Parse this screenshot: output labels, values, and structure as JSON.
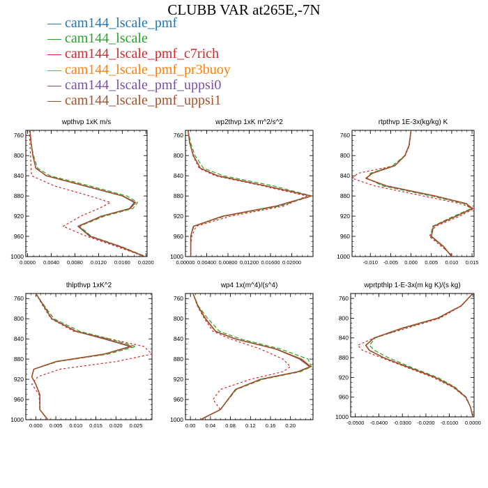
{
  "figure": {
    "title": "CLUBB VAR at265E,-7N",
    "legend": [
      {
        "name": "cam144_lscale_pmf",
        "color": "#1f77b4",
        "dash": ""
      },
      {
        "name": "cam144_lscale",
        "color": "#2ca02c",
        "dash": "6,3"
      },
      {
        "name": "cam144_lscale_pmf_c7rich",
        "color": "#d62728",
        "dash": "3,3"
      },
      {
        "name": "cam144_lscale_pmf_pr3buoy",
        "color": "#ff7f0e",
        "dash": ""
      },
      {
        "name": "cam144_lscale_pmf_uppsi0",
        "color": "#7b4fa6",
        "dash": ""
      },
      {
        "name": "cam144_lscale_pmf_uppsi1",
        "color": "#a0522d",
        "dash": ""
      }
    ]
  },
  "chart_data": [
    {
      "type": "line",
      "title": "wpthvp   1xK m/s",
      "xlim": [
        -0.0003,
        0.0202
      ],
      "ylim": [
        1000,
        750
      ],
      "xticks": [
        0.0,
        0.004,
        0.008,
        0.012,
        0.016,
        0.02
      ],
      "xtick_labels": [
        "0.0000",
        "0.0040",
        "0.0080",
        "0.0120",
        "0.0160",
        "0.0200"
      ],
      "yticks": [
        760,
        800,
        840,
        880,
        920,
        960,
        1000
      ],
      "y": [
        750,
        775,
        800,
        825,
        840,
        860,
        880,
        893,
        905,
        920,
        940,
        960,
        980,
        1000
      ],
      "series": [
        {
          "values": [
            0.0004,
            0.0006,
            0.0009,
            0.0014,
            0.0032,
            0.0095,
            0.016,
            0.018,
            0.0172,
            0.0125,
            0.0085,
            0.0105,
            0.0155,
            0.0198
          ]
        },
        {
          "values": [
            0.0004,
            0.0006,
            0.001,
            0.0017,
            0.0038,
            0.0105,
            0.0168,
            0.0186,
            0.0178,
            0.013,
            0.0088,
            0.0108,
            0.0158,
            0.02
          ]
        },
        {
          "values": [
            0.0003,
            0.0004,
            0.0005,
            0.0006,
            0.0007,
            0.0045,
            0.0105,
            0.014,
            0.012,
            0.009,
            0.006,
            0.01,
            0.015,
            0.0198
          ]
        },
        {
          "values": [
            0.0004,
            0.0006,
            0.0009,
            0.0014,
            0.0032,
            0.0098,
            0.0162,
            0.0183,
            0.0174,
            0.0126,
            0.0086,
            0.0106,
            0.0156,
            0.0198
          ]
        },
        {
          "values": [
            0.0004,
            0.0006,
            0.0009,
            0.0014,
            0.0032,
            0.0096,
            0.016,
            0.0181,
            0.0172,
            0.0125,
            0.0085,
            0.0105,
            0.0155,
            0.0198
          ]
        },
        {
          "values": [
            0.0004,
            0.0006,
            0.0009,
            0.0014,
            0.0032,
            0.0097,
            0.0161,
            0.0182,
            0.0173,
            0.0125,
            0.0086,
            0.0106,
            0.0156,
            0.0198
          ]
        }
      ]
    },
    {
      "type": "line",
      "title": "wp2thvp   1xK m^2/s^2",
      "xlim": [
        0.0,
        0.024
      ],
      "ylim": [
        1000,
        750
      ],
      "xticks": [
        0.0,
        0.004,
        0.008,
        0.012,
        0.016,
        0.02
      ],
      "xtick_labels": [
        "0.00000",
        "0.00400",
        "0.00800",
        "0.01200",
        "0.01600",
        "0.02000"
      ],
      "yticks": [
        760,
        800,
        840,
        880,
        920,
        960,
        1000
      ],
      "y": [
        750,
        775,
        800,
        825,
        840,
        860,
        880,
        900,
        920,
        940,
        960,
        980,
        1000
      ],
      "series": [
        {
          "values": [
            0.0005,
            0.0008,
            0.0015,
            0.0028,
            0.006,
            0.015,
            0.0236,
            0.017,
            0.007,
            0.0015,
            0.001,
            0.001,
            0.001
          ]
        },
        {
          "values": [
            0.0005,
            0.001,
            0.0018,
            0.0034,
            0.0072,
            0.0165,
            0.0238,
            0.0178,
            0.0074,
            0.0016,
            0.001,
            0.001,
            0.001
          ]
        },
        {
          "values": [
            0.0005,
            0.0008,
            0.0014,
            0.0026,
            0.0056,
            0.0145,
            0.0228,
            0.0185,
            0.0085,
            0.002,
            0.0012,
            0.001,
            0.001
          ]
        },
        {
          "values": [
            0.0005,
            0.0008,
            0.0015,
            0.0028,
            0.0062,
            0.0152,
            0.0237,
            0.0172,
            0.0071,
            0.0015,
            0.001,
            0.001,
            0.001
          ]
        },
        {
          "values": [
            0.0005,
            0.0008,
            0.0015,
            0.0028,
            0.006,
            0.0151,
            0.0236,
            0.0171,
            0.007,
            0.0015,
            0.001,
            0.001,
            0.001
          ]
        },
        {
          "values": [
            0.0005,
            0.0008,
            0.0015,
            0.0028,
            0.0061,
            0.0151,
            0.0237,
            0.0171,
            0.007,
            0.0015,
            0.001,
            0.001,
            0.001
          ]
        }
      ]
    },
    {
      "type": "line",
      "title": "rtpthvp   1E-3x(kg/kg) K",
      "xlim": [
        -0.0145,
        0.0155
      ],
      "ylim": [
        1000,
        750
      ],
      "xticks": [
        -0.01,
        -0.005,
        0.0,
        0.005,
        0.01,
        0.015
      ],
      "xtick_labels": [
        "-0.010",
        "-0.005",
        "0.000",
        "0.005",
        "0.010",
        "0.015"
      ],
      "yticks": [
        760,
        800,
        840,
        880,
        920,
        960,
        1000
      ],
      "y": [
        750,
        780,
        800,
        820,
        835,
        845,
        860,
        880,
        895,
        905,
        920,
        940,
        960,
        980,
        1000
      ],
      "series": [
        {
          "values": [
            0.0,
            -0.0005,
            -0.0015,
            -0.004,
            -0.0095,
            -0.011,
            -0.006,
            0.006,
            0.0135,
            0.015,
            0.011,
            0.0055,
            0.005,
            0.008,
            0.01
          ]
        },
        {
          "values": [
            0.0,
            -0.0005,
            -0.0016,
            -0.0045,
            -0.01,
            -0.0108,
            -0.007,
            0.005,
            0.013,
            0.0148,
            0.0105,
            0.0053,
            0.0048,
            0.0078,
            0.01
          ]
        },
        {
          "values": [
            0.0,
            -0.0004,
            -0.0014,
            -0.004,
            -0.013,
            -0.0145,
            -0.009,
            0.003,
            0.012,
            0.0155,
            0.012,
            0.006,
            0.0045,
            0.0075,
            0.0105
          ]
        },
        {
          "values": [
            0.0,
            -0.0005,
            -0.0015,
            -0.004,
            -0.0096,
            -0.0111,
            -0.0062,
            0.0058,
            0.0136,
            0.0152,
            0.0112,
            0.0055,
            0.005,
            0.008,
            0.01
          ]
        },
        {
          "values": [
            0.0,
            -0.0005,
            -0.0015,
            -0.004,
            -0.0095,
            -0.011,
            -0.0061,
            0.0059,
            0.0135,
            0.0151,
            0.0111,
            0.0055,
            0.005,
            0.008,
            0.01
          ]
        },
        {
          "values": [
            0.0,
            -0.0005,
            -0.0015,
            -0.004,
            -0.0095,
            -0.0111,
            -0.0061,
            0.0059,
            0.0136,
            0.0151,
            0.0111,
            0.0055,
            0.005,
            0.008,
            0.01
          ]
        }
      ]
    },
    {
      "type": "line",
      "title": "thlpthvp   1xK^2",
      "xlim": [
        -0.0025,
        0.029
      ],
      "ylim": [
        1000,
        750
      ],
      "xticks": [
        0.0,
        0.005,
        0.01,
        0.015,
        0.02,
        0.025
      ],
      "xtick_labels": [
        "0.000",
        "0.005",
        "0.010",
        "0.015",
        "0.020",
        "0.025"
      ],
      "yticks": [
        760,
        800,
        840,
        880,
        920,
        960,
        1000
      ],
      "y": [
        750,
        775,
        800,
        825,
        840,
        855,
        870,
        885,
        900,
        915,
        930,
        950,
        980,
        1000
      ],
      "series": [
        {
          "values": [
            0.0,
            0.002,
            0.004,
            0.01,
            0.017,
            0.0235,
            0.017,
            0.005,
            -0.0005,
            -0.001,
            0.0,
            0.001,
            0.001,
            0.003
          ]
        },
        {
          "values": [
            0.0,
            0.0022,
            0.0045,
            0.011,
            0.0185,
            0.025,
            0.018,
            0.0055,
            -0.0005,
            -0.001,
            0.0,
            0.001,
            0.001,
            0.003
          ]
        },
        {
          "values": [
            0.0,
            0.0018,
            0.0038,
            0.0095,
            0.0185,
            0.027,
            0.029,
            0.02,
            0.006,
            0.0005,
            -0.001,
            0.0008,
            0.001,
            0.003
          ]
        },
        {
          "values": [
            0.0,
            0.002,
            0.004,
            0.0102,
            0.0175,
            0.024,
            0.0172,
            0.0051,
            -0.0005,
            -0.001,
            0.0,
            0.001,
            0.001,
            0.003
          ]
        },
        {
          "values": [
            0.0,
            0.002,
            0.004,
            0.01,
            0.0172,
            0.0236,
            0.017,
            0.005,
            -0.0005,
            -0.001,
            0.0,
            0.001,
            0.001,
            0.003
          ]
        },
        {
          "values": [
            0.0,
            0.002,
            0.004,
            0.0101,
            0.0174,
            0.0238,
            0.0171,
            0.005,
            -0.0005,
            -0.001,
            0.0,
            0.001,
            0.001,
            0.003
          ]
        }
      ]
    },
    {
      "type": "line",
      "title": "wp4   1x(m^4)/(s^4)",
      "xlim": [
        -0.01,
        0.245
      ],
      "ylim": [
        1000,
        750
      ],
      "xticks": [
        0.0,
        0.04,
        0.08,
        0.12,
        0.16,
        0.2
      ],
      "xtick_labels": [
        "0.00",
        "0.04",
        "0.08",
        "0.12",
        "0.16",
        "0.20"
      ],
      "yticks": [
        760,
        800,
        840,
        880,
        920,
        960,
        1000
      ],
      "y": [
        750,
        775,
        800,
        825,
        840,
        860,
        880,
        895,
        905,
        920,
        940,
        960,
        980,
        1000
      ],
      "series": [
        {
          "values": [
            0.005,
            0.015,
            0.03,
            0.05,
            0.09,
            0.17,
            0.22,
            0.24,
            0.215,
            0.14,
            0.09,
            0.075,
            0.06,
            0.02
          ]
        },
        {
          "values": [
            0.005,
            0.016,
            0.035,
            0.058,
            0.1,
            0.18,
            0.235,
            0.242,
            0.22,
            0.145,
            0.092,
            0.076,
            0.06,
            0.02
          ]
        },
        {
          "values": [
            0.005,
            0.014,
            0.028,
            0.045,
            0.08,
            0.14,
            0.185,
            0.2,
            0.185,
            0.12,
            0.06,
            0.045,
            0.06,
            0.02
          ]
        },
        {
          "values": [
            0.005,
            0.015,
            0.031,
            0.051,
            0.091,
            0.172,
            0.223,
            0.241,
            0.216,
            0.141,
            0.09,
            0.075,
            0.06,
            0.02
          ]
        },
        {
          "values": [
            0.005,
            0.015,
            0.03,
            0.05,
            0.09,
            0.17,
            0.218,
            0.238,
            0.214,
            0.14,
            0.09,
            0.075,
            0.06,
            0.02
          ]
        },
        {
          "values": [
            0.005,
            0.015,
            0.03,
            0.05,
            0.09,
            0.171,
            0.221,
            0.24,
            0.215,
            0.14,
            0.09,
            0.075,
            0.06,
            0.02
          ]
        }
      ]
    },
    {
      "type": "line",
      "title": "wprtpthlp   1-E-3x(m kg K)/(s kg)",
      "xlim": [
        -0.052,
        0.0005
      ],
      "ylim": [
        1000,
        750
      ],
      "xticks": [
        -0.05,
        -0.04,
        -0.03,
        -0.02,
        -0.01,
        0.0
      ],
      "xtick_labels": [
        "-0.0500",
        "-0.0400",
        "-0.0300",
        "-0.0200",
        "-0.0100",
        "0.0000"
      ],
      "yticks": [
        760,
        800,
        840,
        880,
        920,
        960,
        1000
      ],
      "y": [
        750,
        775,
        800,
        820,
        840,
        855,
        865,
        880,
        900,
        920,
        940,
        960,
        980,
        1000
      ],
      "series": [
        {
          "values": [
            0.0,
            -0.005,
            -0.015,
            -0.03,
            -0.042,
            -0.0455,
            -0.044,
            -0.038,
            -0.027,
            -0.016,
            -0.008,
            -0.003,
            -0.001,
            0.0
          ]
        },
        {
          "values": [
            0.0,
            -0.005,
            -0.0145,
            -0.029,
            -0.0415,
            -0.044,
            -0.042,
            -0.036,
            -0.026,
            -0.015,
            -0.0075,
            -0.0028,
            -0.001,
            0.0
          ]
        },
        {
          "values": [
            0.0,
            -0.0048,
            -0.014,
            -0.028,
            -0.042,
            -0.049,
            -0.047,
            -0.039,
            -0.028,
            -0.017,
            -0.0085,
            -0.0032,
            -0.001,
            0.0
          ]
        },
        {
          "values": [
            0.0,
            -0.005,
            -0.015,
            -0.03,
            -0.0421,
            -0.0456,
            -0.0441,
            -0.0381,
            -0.0271,
            -0.0161,
            -0.008,
            -0.003,
            -0.001,
            0.0
          ]
        },
        {
          "values": [
            0.0,
            -0.005,
            -0.015,
            -0.03,
            -0.042,
            -0.0455,
            -0.044,
            -0.038,
            -0.027,
            -0.016,
            -0.008,
            -0.003,
            -0.001,
            0.0
          ]
        },
        {
          "values": [
            0.0,
            -0.005,
            -0.015,
            -0.03,
            -0.042,
            -0.0456,
            -0.0441,
            -0.038,
            -0.0271,
            -0.016,
            -0.008,
            -0.003,
            -0.001,
            0.0
          ]
        }
      ]
    }
  ]
}
